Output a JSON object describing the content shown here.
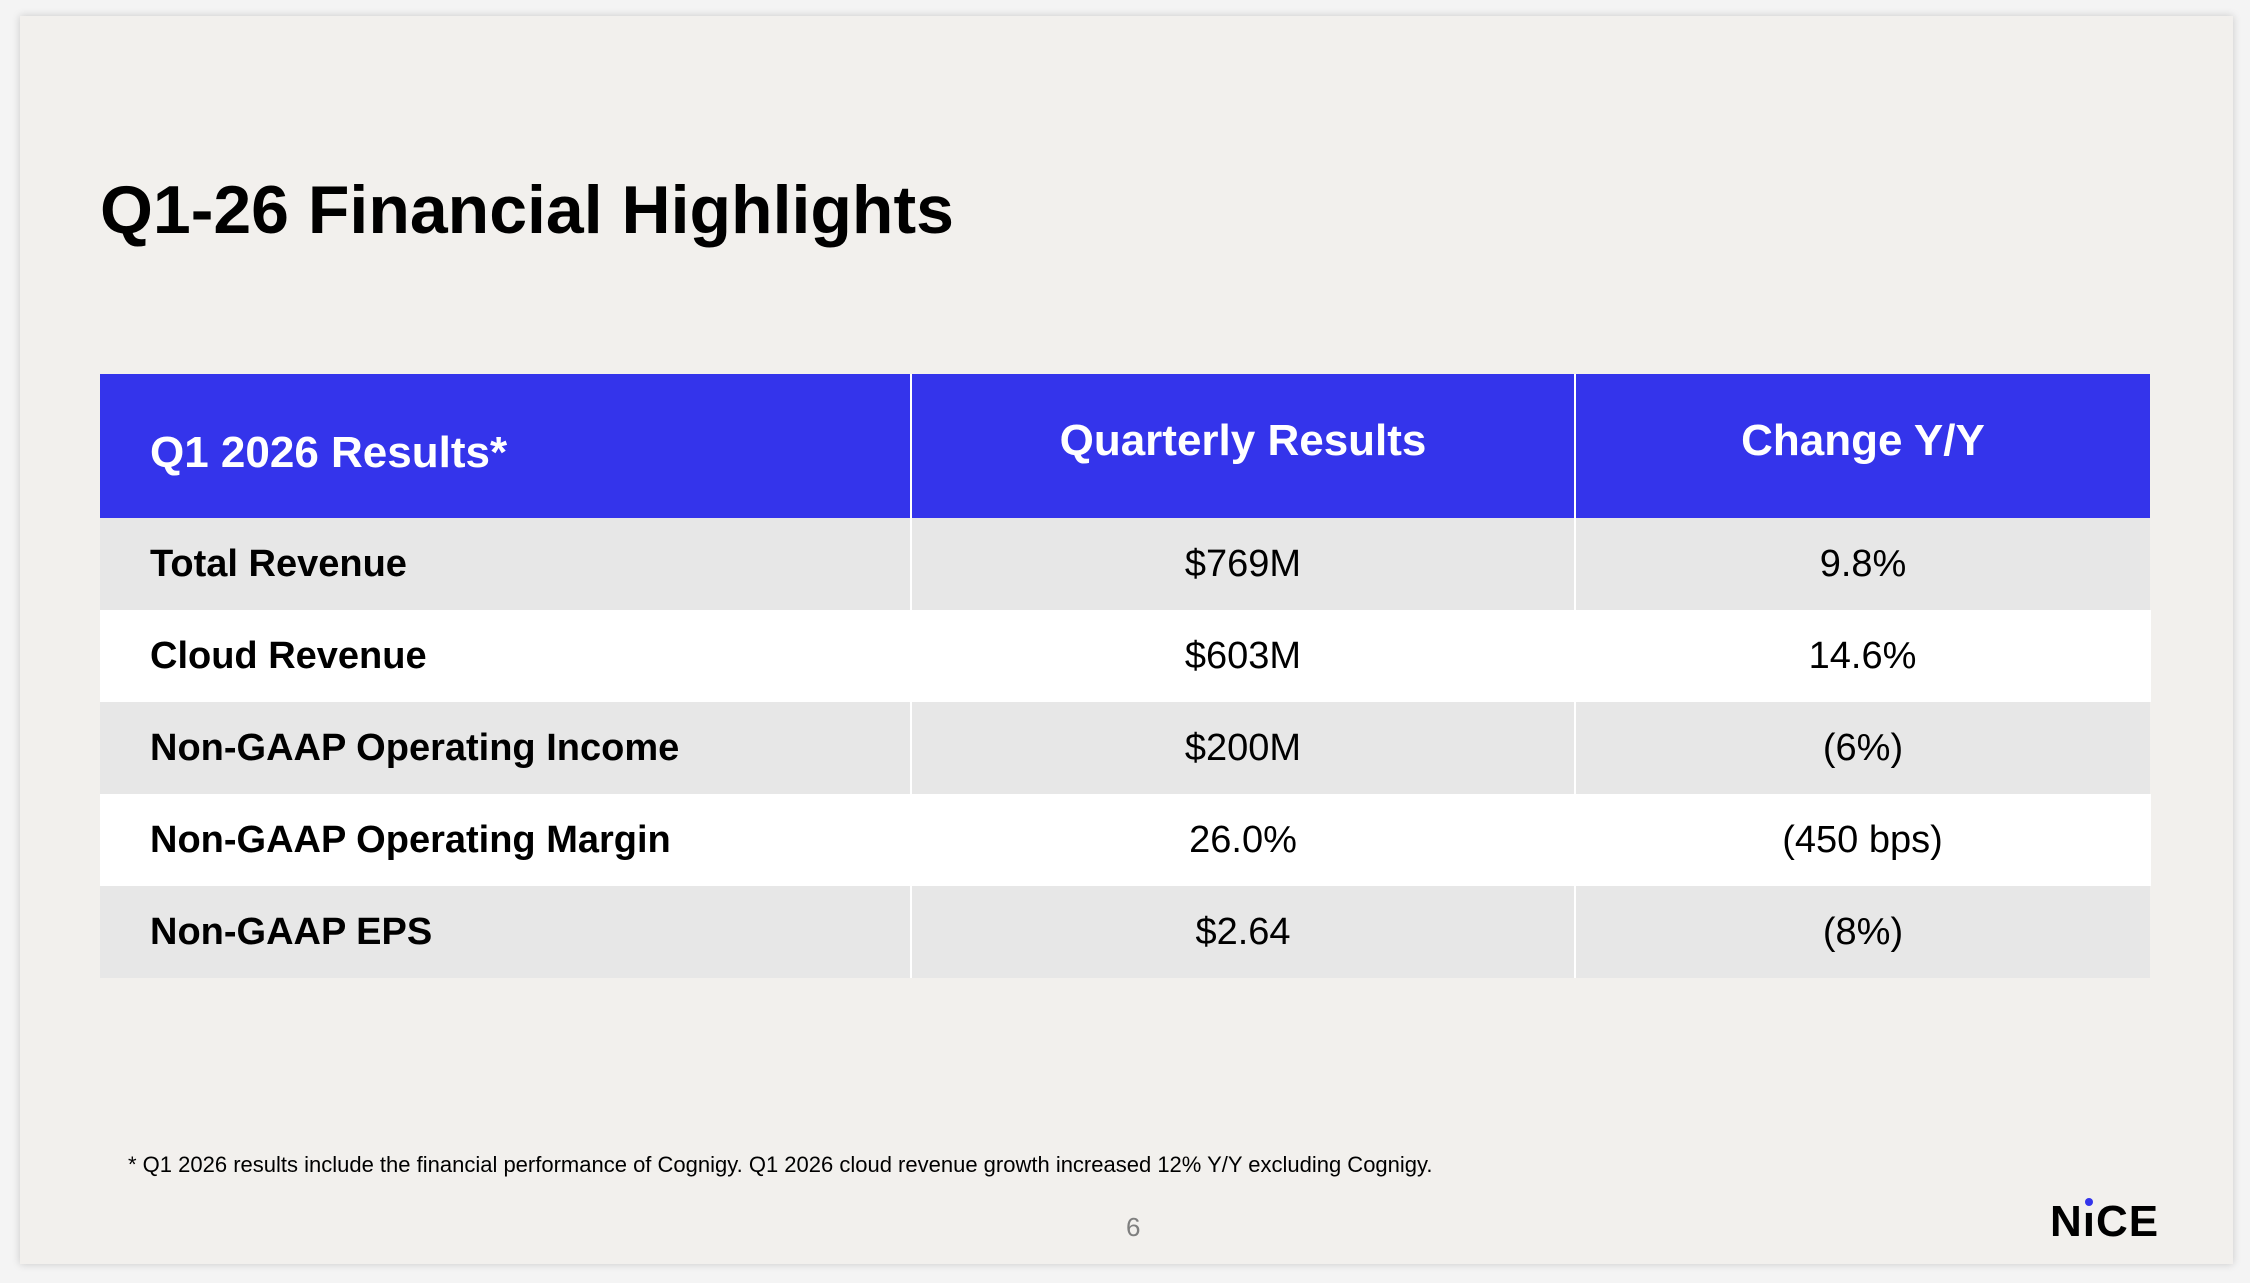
{
  "slide": {
    "title": "Q1-26 Financial Highlights",
    "page_number": "6",
    "footnote": "* Q1 2026 results include the financial performance of Cognigy. Q1 2026 cloud revenue growth increased 12% Y/Y excluding Cognigy.",
    "logo_text": "NICE",
    "logo_parts": {
      "pre": "N",
      "i": "ı",
      "post": "CE"
    }
  },
  "table": {
    "headers": [
      "Q1 2026 Results*",
      "Quarterly Results",
      "Change Y/Y"
    ],
    "rows": [
      {
        "metric": "Total Revenue",
        "quarterly": "$769M",
        "change": "9.8%"
      },
      {
        "metric": "Cloud Revenue",
        "quarterly": "$603M",
        "change": "14.6%"
      },
      {
        "metric": "Non-GAAP Operating Income",
        "quarterly": "$200M",
        "change": "(6%)"
      },
      {
        "metric": "Non-GAAP Operating Margin",
        "quarterly": "26.0%",
        "change": "(450 bps)"
      },
      {
        "metric": "Non-GAAP EPS",
        "quarterly": "$2.64",
        "change": "(8%)"
      }
    ]
  },
  "colors": {
    "header_blue": "#3434eb",
    "slide_background": "#f2f0ed",
    "row_alt_gray": "#e7e7e7",
    "row_white": "#ffffff",
    "logo_dot": "#3434eb"
  }
}
